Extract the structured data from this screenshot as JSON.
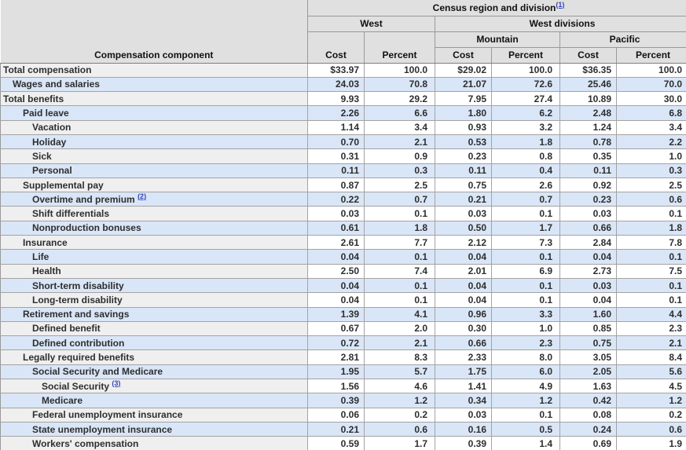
{
  "header": {
    "row_header": "Compensation component",
    "title": "Census region and division",
    "title_footnote": "(1)",
    "groups": [
      {
        "label": "West"
      },
      {
        "label": "West divisions"
      }
    ],
    "subgroups": [
      {
        "label": "Mountain"
      },
      {
        "label": "Pacific"
      }
    ],
    "cost_label": "Cost",
    "percent_label": "Percent"
  },
  "colors": {
    "header_bg": "#e0e0e0",
    "stripe_blue": "#d9e6f7",
    "stripe_gray": "#efefef",
    "link_color": "#3344bb"
  },
  "rows": [
    {
      "label": "Total compensation",
      "indent": 0,
      "values": [
        "$33.97",
        "100.0",
        "$29.02",
        "100.0",
        "$36.35",
        "100.0"
      ]
    },
    {
      "label": "Wages and salaries",
      "indent": 1,
      "values": [
        "24.03",
        "70.8",
        "21.07",
        "72.6",
        "25.46",
        "70.0"
      ]
    },
    {
      "label": "Total benefits",
      "indent": 0,
      "values": [
        "9.93",
        "29.2",
        "7.95",
        "27.4",
        "10.89",
        "30.0"
      ]
    },
    {
      "label": "Paid leave",
      "indent": 2,
      "values": [
        "2.26",
        "6.6",
        "1.80",
        "6.2",
        "2.48",
        "6.8"
      ]
    },
    {
      "label": "Vacation",
      "indent": 3,
      "values": [
        "1.14",
        "3.4",
        "0.93",
        "3.2",
        "1.24",
        "3.4"
      ]
    },
    {
      "label": "Holiday",
      "indent": 3,
      "values": [
        "0.70",
        "2.1",
        "0.53",
        "1.8",
        "0.78",
        "2.2"
      ]
    },
    {
      "label": "Sick",
      "indent": 3,
      "values": [
        "0.31",
        "0.9",
        "0.23",
        "0.8",
        "0.35",
        "1.0"
      ]
    },
    {
      "label": "Personal",
      "indent": 3,
      "values": [
        "0.11",
        "0.3",
        "0.11",
        "0.4",
        "0.11",
        "0.3"
      ]
    },
    {
      "label": "Supplemental pay",
      "indent": 2,
      "values": [
        "0.87",
        "2.5",
        "0.75",
        "2.6",
        "0.92",
        "2.5"
      ]
    },
    {
      "label": "Overtime and premium",
      "indent": 3,
      "footnote": "(2)",
      "values": [
        "0.22",
        "0.7",
        "0.21",
        "0.7",
        "0.23",
        "0.6"
      ]
    },
    {
      "label": "Shift differentials",
      "indent": 3,
      "values": [
        "0.03",
        "0.1",
        "0.03",
        "0.1",
        "0.03",
        "0.1"
      ]
    },
    {
      "label": "Nonproduction bonuses",
      "indent": 3,
      "values": [
        "0.61",
        "1.8",
        "0.50",
        "1.7",
        "0.66",
        "1.8"
      ]
    },
    {
      "label": "Insurance",
      "indent": 2,
      "values": [
        "2.61",
        "7.7",
        "2.12",
        "7.3",
        "2.84",
        "7.8"
      ]
    },
    {
      "label": "Life",
      "indent": 3,
      "values": [
        "0.04",
        "0.1",
        "0.04",
        "0.1",
        "0.04",
        "0.1"
      ]
    },
    {
      "label": "Health",
      "indent": 3,
      "values": [
        "2.50",
        "7.4",
        "2.01",
        "6.9",
        "2.73",
        "7.5"
      ]
    },
    {
      "label": "Short-term disability",
      "indent": 3,
      "values": [
        "0.04",
        "0.1",
        "0.04",
        "0.1",
        "0.03",
        "0.1"
      ]
    },
    {
      "label": "Long-term disability",
      "indent": 3,
      "values": [
        "0.04",
        "0.1",
        "0.04",
        "0.1",
        "0.04",
        "0.1"
      ]
    },
    {
      "label": "Retirement and savings",
      "indent": 2,
      "values": [
        "1.39",
        "4.1",
        "0.96",
        "3.3",
        "1.60",
        "4.4"
      ]
    },
    {
      "label": "Defined benefit",
      "indent": 3,
      "values": [
        "0.67",
        "2.0",
        "0.30",
        "1.0",
        "0.85",
        "2.3"
      ]
    },
    {
      "label": "Defined contribution",
      "indent": 3,
      "values": [
        "0.72",
        "2.1",
        "0.66",
        "2.3",
        "0.75",
        "2.1"
      ]
    },
    {
      "label": "Legally required benefits",
      "indent": 2,
      "values": [
        "2.81",
        "8.3",
        "2.33",
        "8.0",
        "3.05",
        "8.4"
      ]
    },
    {
      "label": "Social Security and Medicare",
      "indent": 3,
      "values": [
        "1.95",
        "5.7",
        "1.75",
        "6.0",
        "2.05",
        "5.6"
      ]
    },
    {
      "label": "Social Security",
      "indent": 4,
      "footnote": "(3)",
      "values": [
        "1.56",
        "4.6",
        "1.41",
        "4.9",
        "1.63",
        "4.5"
      ]
    },
    {
      "label": "Medicare",
      "indent": 4,
      "values": [
        "0.39",
        "1.2",
        "0.34",
        "1.2",
        "0.42",
        "1.2"
      ]
    },
    {
      "label": "Federal unemployment insurance",
      "indent": 3,
      "values": [
        "0.06",
        "0.2",
        "0.03",
        "0.1",
        "0.08",
        "0.2"
      ]
    },
    {
      "label": "State unemployment insurance",
      "indent": 3,
      "values": [
        "0.21",
        "0.6",
        "0.16",
        "0.5",
        "0.24",
        "0.6"
      ]
    },
    {
      "label": "Workers' compensation",
      "indent": 3,
      "values": [
        "0.59",
        "1.7",
        "0.39",
        "1.4",
        "0.69",
        "1.9"
      ]
    }
  ]
}
